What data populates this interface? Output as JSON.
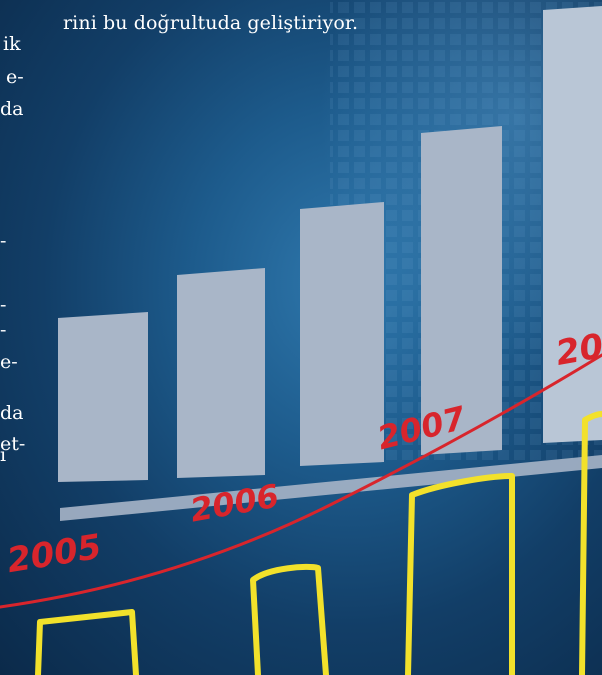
{
  "caption": "rini bu doğrultuda geliştiriyor.",
  "left_text_fragments": [
    "ik",
    "e-",
    "da",
    "-",
    "-",
    "-",
    "e-",
    "da",
    "et-",
    "ı"
  ],
  "years": [
    "2005",
    "2006",
    "2007",
    "20"
  ],
  "colors": {
    "background": "#1d5b8c",
    "bars": "#a9b6c8",
    "handwriting_red": "#d8252c",
    "handwriting_yellow": "#f2e12b",
    "text": "#ffffff"
  }
}
